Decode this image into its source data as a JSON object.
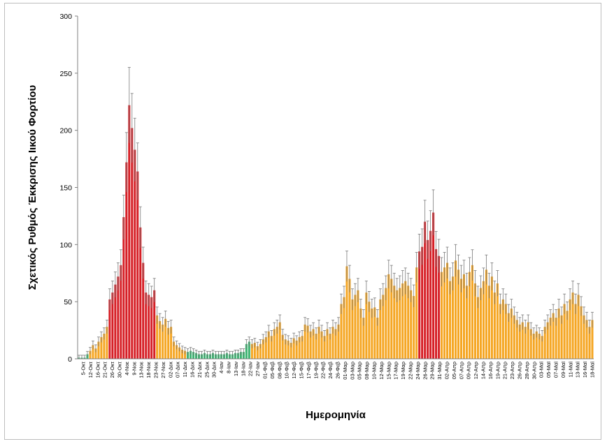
{
  "chart_data": {
    "type": "bar",
    "title": "",
    "xlabel": "Ημερομηνία",
    "ylabel": "Σχετικός Ρυθμός Έκκρισης Ιικού Φορτίου",
    "ylim": [
      0,
      300
    ],
    "yticks": [
      0,
      50,
      100,
      150,
      200,
      250,
      300
    ],
    "grid": false,
    "colors": {
      "green": "#3cb371",
      "orange": "#f5a623",
      "red": "#d61f26",
      "error": "#7a7a7a"
    },
    "xtick_labels": [
      "5-Οκτ",
      "12-Οκτ",
      "16-Οκτ",
      "21-Οκτ",
      "26-Οκτ",
      "30-Οκτ",
      "4-Νοε",
      "9-Νοε",
      "13-Νοε",
      "18-Νοε",
      "23-Νοε",
      "27-Νοε",
      "02-Δεκ",
      "07-Δεκ",
      "11-Δεκ",
      "16-Δεκ",
      "21-Δεκ",
      "25-Δεκ",
      "30-Δεκ",
      "4-Ιαν",
      "8-Ιαν",
      "13-Ιαν",
      "18-Ιαν",
      "22-Ιαν",
      "27-Ιαν",
      "01-Φεβ",
      "05-Φεβ",
      "08-Φεβ",
      "10-Φεβ",
      "12-Φεβ",
      "15-Φεβ",
      "17-Φεβ",
      "19-Φεβ",
      "22-Φεβ",
      "24-Φεβ",
      "26-Φεβ",
      "01-Μαρ",
      "03-Μαρ",
      "05-Μαρ",
      "08-Μαρ",
      "10-Μαρ",
      "12-Μαρ",
      "15-Μαρ",
      "17-Μαρ",
      "19-Μαρ",
      "22-Μαρ",
      "24-Μαρ",
      "26-Μαρ",
      "29-Μαρ",
      "31-Μαρ",
      "02-Απρ",
      "05-Απρ",
      "07-Απρ",
      "09-Απρ",
      "12-Απρ",
      "14-Απρ",
      "16-Απρ",
      "19-Απρ",
      "21-Απρ",
      "23-Απρ",
      "26-Απρ",
      "28-Απρ",
      "30-Απρ",
      "03-Μαϊ",
      "05-Μαϊ",
      "07-Μαϊ",
      "09-Μαϊ",
      "11-Μαϊ",
      "13-Μαϊ",
      "16-Μαϊ",
      "18-Μαϊ"
    ],
    "values": [
      1,
      1,
      1,
      4,
      7,
      12,
      9,
      15,
      19,
      22,
      28,
      52,
      58,
      65,
      72,
      82,
      124,
      172,
      222,
      202,
      183,
      164,
      115,
      84,
      58,
      56,
      54,
      60,
      38,
      33,
      30,
      35,
      27,
      28,
      15,
      12,
      10,
      8,
      7,
      6,
      7,
      6,
      5,
      4,
      4,
      5,
      4,
      4,
      5,
      4,
      4,
      4,
      4,
      5,
      4,
      4,
      5,
      5,
      6,
      6,
      13,
      15,
      13,
      14,
      11,
      13,
      17,
      19,
      24,
      20,
      26,
      28,
      32,
      21,
      17,
      16,
      14,
      18,
      16,
      19,
      20,
      30,
      29,
      24,
      26,
      22,
      28,
      24,
      20,
      26,
      22,
      28,
      26,
      30,
      48,
      54,
      81,
      70,
      52,
      56,
      60,
      44,
      36,
      58,
      50,
      44,
      45,
      36,
      52,
      56,
      62,
      74,
      70,
      64,
      60,
      62,
      66,
      68,
      64,
      60,
      55,
      80,
      94,
      98,
      120,
      104,
      112,
      128,
      96,
      90,
      76,
      80,
      84,
      68,
      72,
      86,
      78,
      70,
      74,
      64,
      76,
      82,
      66,
      54,
      62,
      68,
      78,
      64,
      72,
      58,
      66,
      48,
      52,
      48,
      40,
      44,
      38,
      34,
      30,
      32,
      28,
      32,
      26,
      22,
      24,
      22,
      20,
      28,
      32,
      36,
      40,
      36,
      44,
      38,
      48,
      42,
      52,
      58,
      48,
      56,
      46,
      38,
      34,
      28,
      34
    ]
  }
}
